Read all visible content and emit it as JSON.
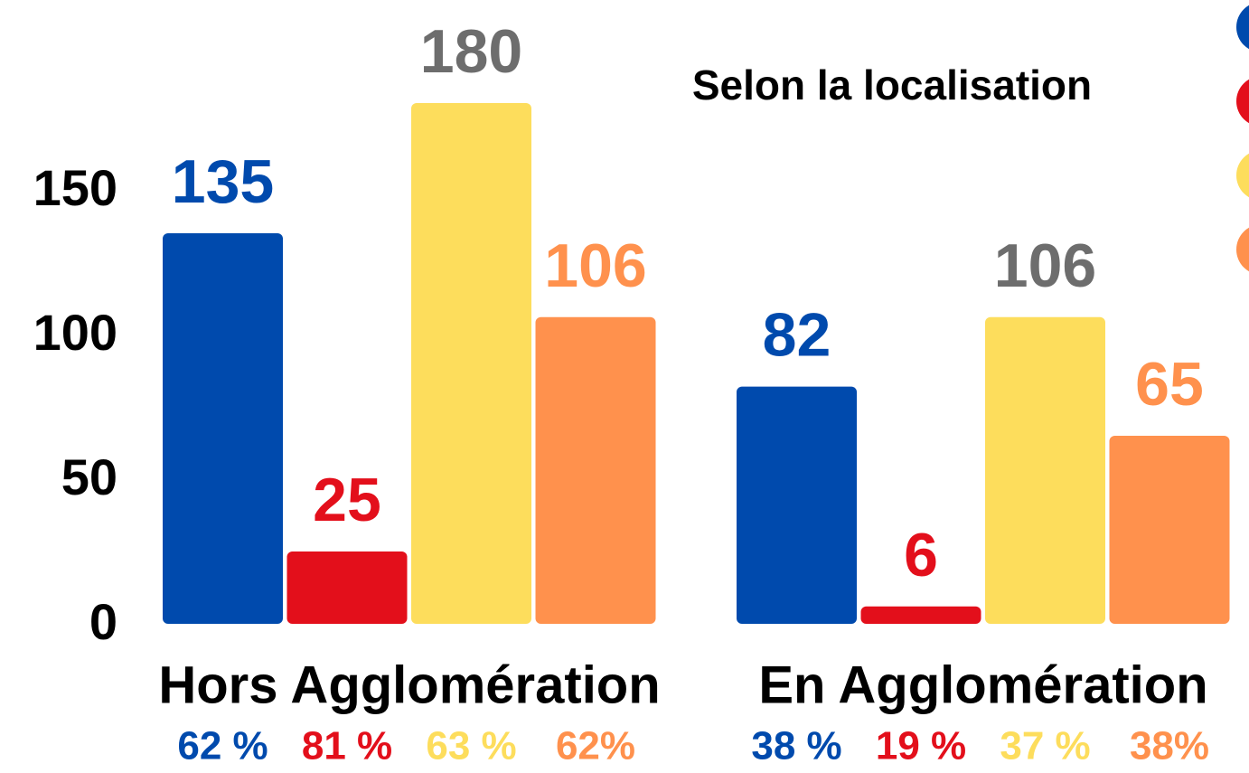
{
  "chart_data": {
    "type": "bar",
    "title": "Selon la localisation",
    "categories": [
      "Hors Agglomération",
      "En Agglomération"
    ],
    "series": [
      {
        "color": "#004aad",
        "label_color": "#004aad",
        "values": [
          135,
          82
        ],
        "share_labels": [
          "62 %",
          "38 %"
        ]
      },
      {
        "color": "#e30f1b",
        "label_color": "#e30f1b",
        "values": [
          25,
          6
        ],
        "share_labels": [
          "81 %",
          "19 %"
        ]
      },
      {
        "color": "#fddd5c",
        "label_color": "#6d6d6d",
        "share_color": "#fddd5c",
        "values": [
          180,
          106
        ],
        "share_labels": [
          "63 %",
          "37 %"
        ]
      },
      {
        "color": "#ff914d",
        "label_color": "#ff914d",
        "values": [
          106,
          65
        ],
        "share_labels": [
          "62%",
          "38%"
        ]
      }
    ],
    "ylim": [
      0,
      215
    ],
    "yticks": [
      0,
      50,
      100,
      150
    ],
    "grid": false
  }
}
